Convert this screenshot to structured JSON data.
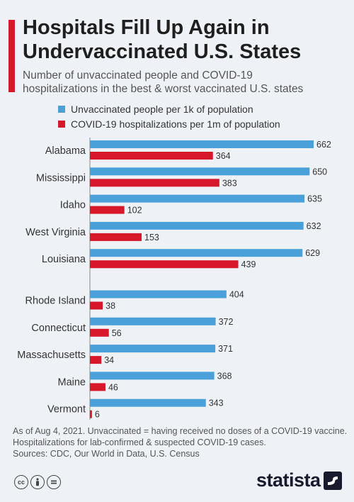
{
  "header": {
    "title_line1": "Hospitals Fill Up Again in",
    "title_line2": "Undervaccinated U.S. States",
    "subtitle_line1": "Number of unvaccinated people and COVID-19",
    "subtitle_line2": "hospitalizations in the best & worst vaccinated U.S. states"
  },
  "legend": [
    {
      "label": "Unvaccinated people per 1k of population",
      "color": "#4aa0d8"
    },
    {
      "label": "COVID-19 hospitalizations per 1m of population",
      "color": "#d7172a"
    }
  ],
  "chart_data": {
    "type": "bar",
    "orientation": "horizontal",
    "categories": [
      "Alabama",
      "Mississippi",
      "Idaho",
      "West Virginia",
      "Louisiana",
      "Rhode Island",
      "Connecticut",
      "Massachusetts",
      "Maine",
      "Vermont"
    ],
    "groups": [
      [
        "Alabama",
        "Mississippi",
        "Idaho",
        "West Virginia",
        "Louisiana"
      ],
      [
        "Rhode Island",
        "Connecticut",
        "Massachusetts",
        "Maine",
        "Vermont"
      ]
    ],
    "series": [
      {
        "name": "Unvaccinated people per 1k of population",
        "color": "#4aa0d8",
        "values": [
          662,
          650,
          635,
          632,
          629,
          404,
          372,
          371,
          368,
          343
        ]
      },
      {
        "name": "COVID-19 hospitalizations per 1m of population",
        "color": "#d7172a",
        "values": [
          364,
          383,
          102,
          153,
          439,
          38,
          56,
          34,
          46,
          6
        ]
      }
    ],
    "xlim": [
      0,
      662
    ],
    "grid": false,
    "legend_position": "top-left"
  },
  "footer": {
    "note_line1": "As of Aug 4, 2021. Unvaccinated = having received no doses of a COVID-19 vaccine.",
    "note_line2": "Hospitalizations for lab-confirmed & suspected COVID-19 cases.",
    "sources": "Sources: CDC, Our World in Data, U.S. Census"
  },
  "license_icons": [
    "cc-icon",
    "attribution-icon",
    "no-derivatives-icon"
  ],
  "brand": {
    "name": "statista"
  }
}
